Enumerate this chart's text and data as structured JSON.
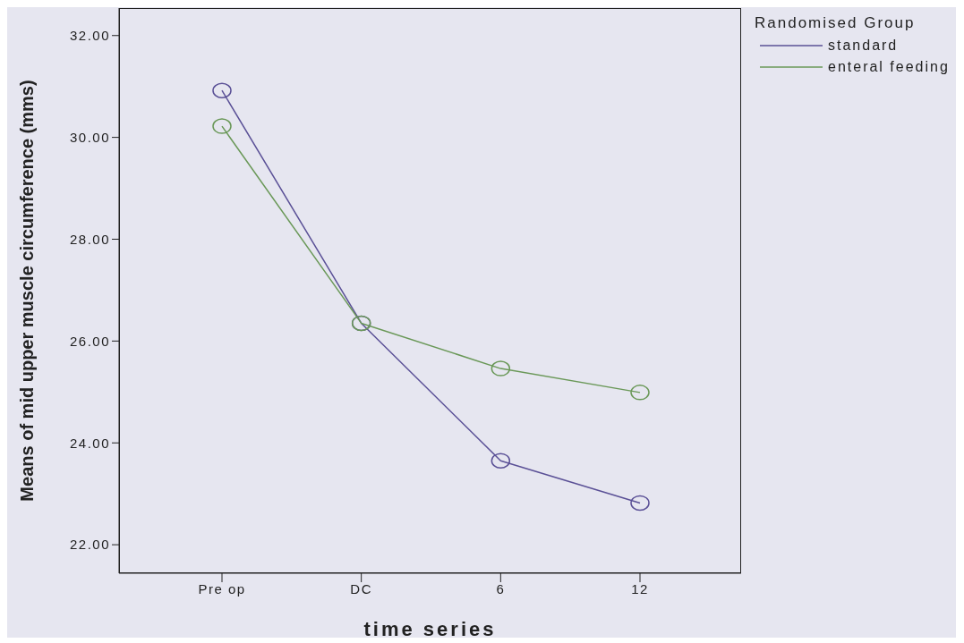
{
  "chart_data": {
    "type": "line",
    "xlabel": "time series",
    "ylabel": "Means of mid upper muscle circumference (mms)",
    "legend_title": "Randomised Group",
    "categories": [
      "Pre op",
      "DC",
      "6",
      "12"
    ],
    "series": [
      {
        "name": "standard",
        "color": "#5a5096",
        "values": [
          30.92,
          26.35,
          23.65,
          22.82
        ]
      },
      {
        "name": "enteral feeding",
        "color": "#6a9858",
        "values": [
          30.22,
          26.35,
          25.46,
          24.99
        ]
      }
    ],
    "ylim": [
      21.44,
      32.54
    ],
    "yticks": [
      {
        "value": 22,
        "label": "22.00"
      },
      {
        "value": 24,
        "label": "24.00"
      },
      {
        "value": 26,
        "label": "26.00"
      },
      {
        "value": 28,
        "label": "28.00"
      },
      {
        "value": 30,
        "label": "30.00"
      },
      {
        "value": 32,
        "label": "32.00"
      }
    ],
    "grid": false,
    "legend": "top right",
    "marker": "circle",
    "line_style": "solid"
  }
}
